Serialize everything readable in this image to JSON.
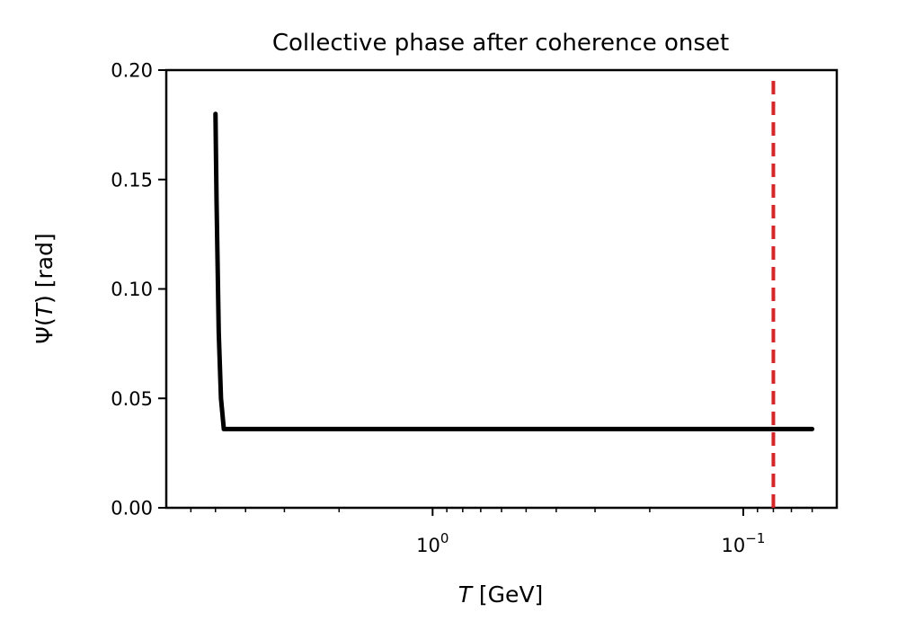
{
  "chart_data": {
    "type": "line",
    "title": "Collective phase after coherence onset",
    "xlabel_var": "T",
    "xlabel_unit": " [GeV]",
    "ylabel_var": "T",
    "ylabel_prefix": "Ψ(",
    "ylabel_suffix": ") [rad]",
    "x_scale": "log",
    "x_inverted": true,
    "xlim": [
      7.2,
      0.05
    ],
    "ylim": [
      0,
      0.2
    ],
    "grid": false,
    "y_ticks": [
      {
        "value": 0.0,
        "label": "0.00"
      },
      {
        "value": 0.05,
        "label": "0.05"
      },
      {
        "value": 0.1,
        "label": "0.10"
      },
      {
        "value": 0.15,
        "label": "0.15"
      },
      {
        "value": 0.2,
        "label": "0.20"
      }
    ],
    "x_major_ticks": [
      {
        "value": 1.0,
        "base": "10",
        "exp": "0"
      },
      {
        "value": 0.1,
        "base": "10",
        "exp": "−1"
      }
    ],
    "x_minor_ticks": [
      6,
      5,
      4,
      3,
      2,
      0.9,
      0.8,
      0.7,
      0.6,
      0.5,
      0.4,
      0.3,
      0.2,
      0.09,
      0.08,
      0.07,
      0.06
    ],
    "series": [
      {
        "color": "#000000",
        "x": [
          5.0,
          4.96,
          4.88,
          4.8,
          4.7,
          4.5,
          3.0,
          1.0,
          0.3,
          0.1,
          0.06
        ],
        "y": [
          0.18,
          0.14,
          0.08,
          0.05,
          0.036,
          0.036,
          0.036,
          0.036,
          0.036,
          0.036,
          0.036
        ]
      }
    ],
    "vline": {
      "x": 0.08,
      "color": "#d62728",
      "style": "dashed"
    }
  }
}
